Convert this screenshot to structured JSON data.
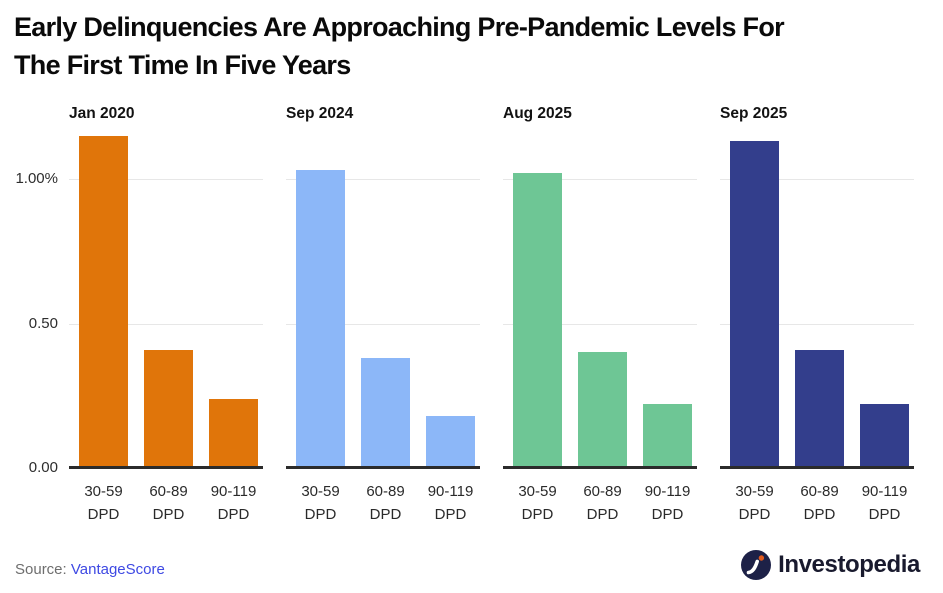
{
  "title": {
    "line1": "Early Delinquencies Are Approaching Pre-Pandemic Levels For",
    "line2": "The First Time In Five Years"
  },
  "axis": {
    "yticks": [
      {
        "label": "1.00%",
        "value": 1.0
      },
      {
        "label": "0.50",
        "value": 0.5
      },
      {
        "label": "0.00",
        "value": 0.0
      }
    ]
  },
  "chart_data": {
    "type": "bar",
    "title": "Early Delinquencies Are Approaching Pre-Pandemic Levels For The First Time In Five Years",
    "categories": [
      "30-59 DPD",
      "60-89 DPD",
      "90-119 DPD"
    ],
    "category_lines": [
      [
        "30-59",
        "DPD"
      ],
      [
        "60-89",
        "DPD"
      ],
      [
        "90-119",
        "DPD"
      ]
    ],
    "panels": [
      {
        "label": "Jan 2020",
        "color": "#e0750a",
        "values": [
          1.15,
          0.41,
          0.24
        ]
      },
      {
        "label": "Sep 2024",
        "color": "#8cb7f8",
        "values": [
          1.03,
          0.38,
          0.18
        ]
      },
      {
        "label": "Aug 2025",
        "color": "#6ec695",
        "values": [
          1.02,
          0.4,
          0.22
        ]
      },
      {
        "label": "Sep 2025",
        "color": "#333e8c",
        "values": [
          1.13,
          0.41,
          0.22
        ]
      }
    ],
    "ylabel": "",
    "unit": "percent",
    "ylim": [
      0,
      1.17
    ],
    "yticks": [
      0,
      0.5,
      1.0
    ],
    "grid": true,
    "legend": false
  },
  "footer": {
    "source_label": "Source:",
    "source_link": "VantageScore",
    "brand": "Investopedia"
  },
  "colors": {
    "jan_2020_orange": "#e0750a",
    "sep_2024_blue": "#8cb7f8",
    "aug_2025_green": "#6ec695",
    "sep_2025_navy": "#333e8c",
    "gridline": "#e7e7e7",
    "baseline": "#2b2b2b",
    "link_blue": "#3e49e3",
    "source_gray": "#6e6e6e",
    "title_black": "#0a0a0a",
    "logo_navy": "#1d2147",
    "logo_dot_orange": "#e05a1e"
  }
}
